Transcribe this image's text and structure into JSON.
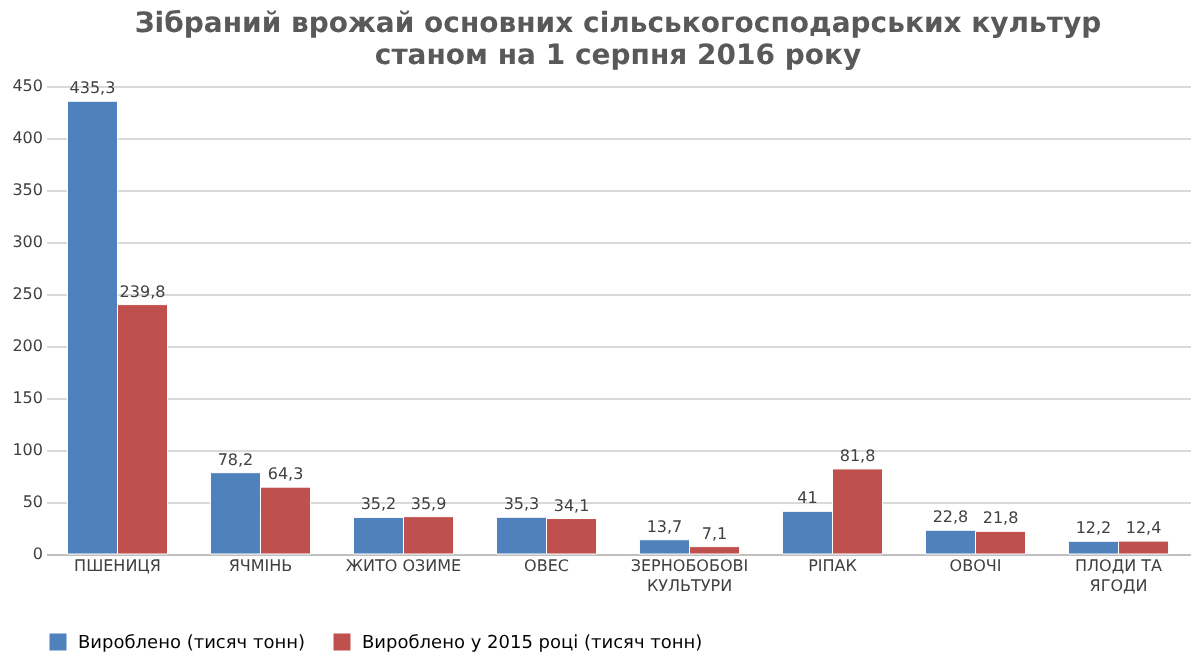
{
  "chart_data": {
    "type": "bar",
    "title": [
      "Зібраний врожай основних сільськогосподарських культур",
      "станом на 1 серпня 2016 року"
    ],
    "categories": [
      "ПШЕНИЦЯ",
      "ЯЧМІНЬ",
      "ЖИТО ОЗИМЕ",
      "ОВЕС",
      "ЗЕРНОБОБОВІ КУЛЬТУРИ",
      "РІПАК",
      "ОВОЧІ",
      "ПЛОДИ ТА ЯГОДИ"
    ],
    "series": [
      {
        "name": "Вироблено (тисяч тонн)",
        "color": "#4f81bd",
        "values": [
          435.3,
          78.2,
          35.2,
          35.3,
          13.7,
          41,
          22.8,
          12.2
        ],
        "value_labels": [
          "435,3",
          "78,2",
          "35,2",
          "35,3",
          "13,7",
          "41",
          "22,8",
          "12,2"
        ]
      },
      {
        "name": "Вироблено у 2015 році (тисяч тонн)",
        "color": "#c0504d",
        "values": [
          239.8,
          64.3,
          35.9,
          34.1,
          7.1,
          81.8,
          21.8,
          12.4
        ],
        "value_labels": [
          "239,8",
          "64,3",
          "35,9",
          "34,1",
          "7,1",
          "81,8",
          "21,8",
          "12,4"
        ]
      }
    ],
    "ylim": [
      0,
      450
    ],
    "yticks": [
      0,
      50,
      100,
      150,
      200,
      250,
      300,
      350,
      400,
      450
    ],
    "grid": "y",
    "legend": "bottom"
  }
}
